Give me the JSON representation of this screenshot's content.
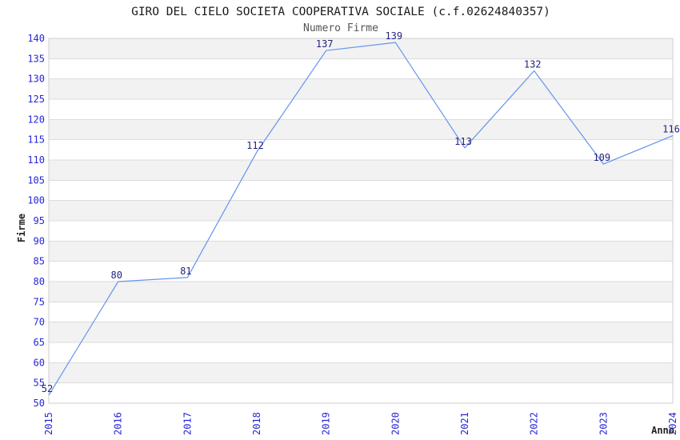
{
  "chart_data": {
    "type": "line",
    "title": "GIRO DEL CIELO SOCIETA COOPERATIVA SOCIALE (c.f.02624840357)",
    "subtitle": "Numero Firme",
    "xlabel": "Anno",
    "ylabel": "Firme",
    "categories": [
      "2015",
      "2016",
      "2017",
      "2018",
      "2019",
      "2020",
      "2021",
      "2022",
      "2023",
      "2024"
    ],
    "series": [
      {
        "name": "Numero Firme",
        "values": [
          52,
          80,
          81,
          112,
          137,
          139,
          113,
          132,
          109,
          116
        ]
      }
    ],
    "ylim": [
      50,
      140
    ],
    "ytick_step": 5,
    "grid": "horizontal-bands",
    "legend": "none",
    "colors": {
      "line": "#6495ed",
      "tick_label": "#2626d8",
      "data_label": "#222280",
      "band": "#f2f2f2",
      "grid_line": "#dcdcdc",
      "plot_border": "#cfcfcf",
      "title": "#1a1a1a",
      "subtitle": "#555555",
      "axis_label": "#222222",
      "background": "#ffffff"
    }
  }
}
